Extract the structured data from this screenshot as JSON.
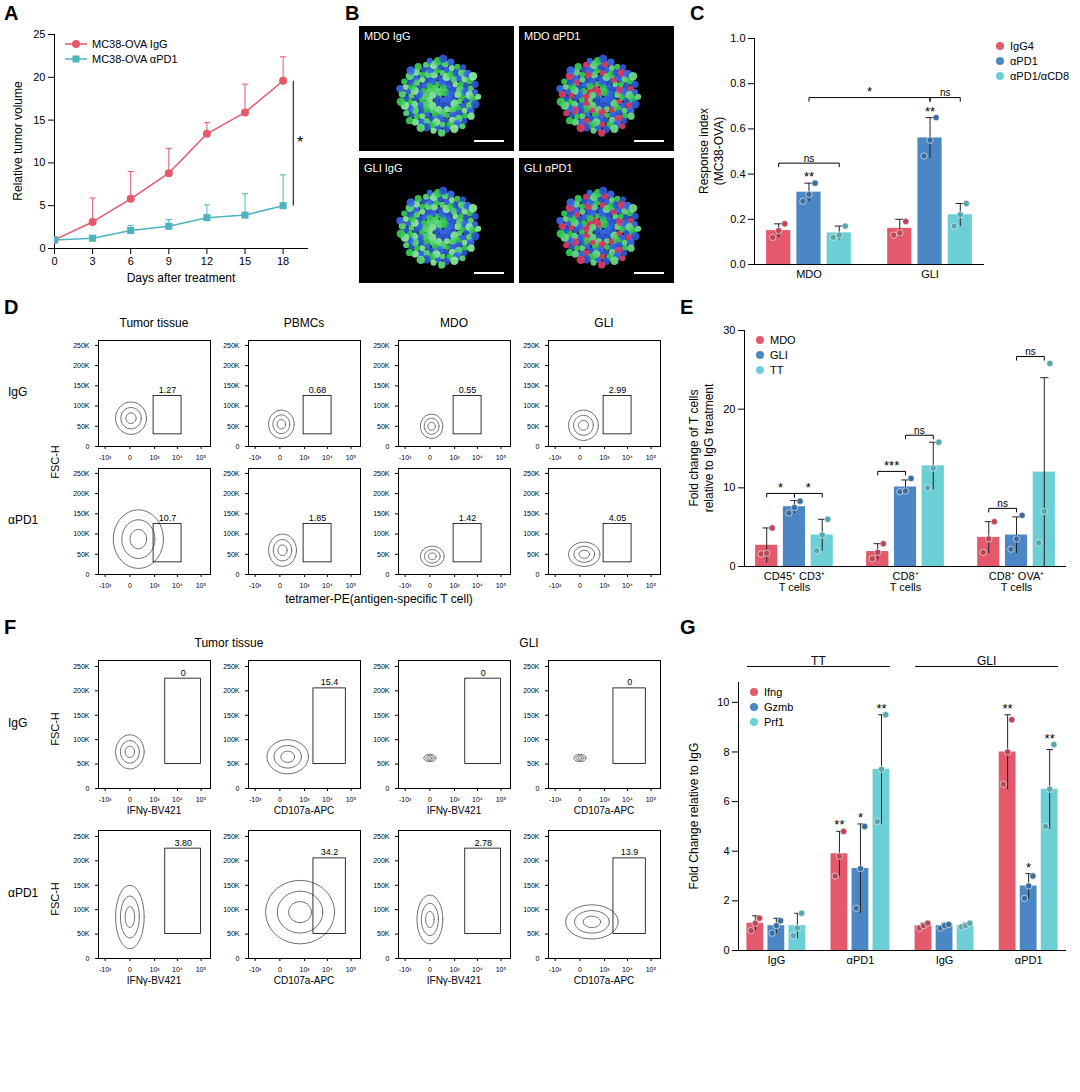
{
  "chart_data": [
    {
      "panel": "A",
      "type": "line",
      "x": [
        0,
        3,
        6,
        9,
        12,
        15,
        18
      ],
      "xlabel": "Days after treatment",
      "ylabel": "Relative tumor volume",
      "xlim": [
        0,
        20
      ],
      "xticks": [
        0,
        3,
        6,
        9,
        12,
        15,
        18
      ],
      "ylim": [
        0,
        25
      ],
      "yticks": [
        0,
        5,
        10,
        15,
        20,
        25
      ],
      "legend": "top-left",
      "series": [
        {
          "name": "MC38-OVA IgG",
          "color": "#e4596c",
          "marker": "circle",
          "values": [
            1,
            3.1,
            5.8,
            8.8,
            13.4,
            15.9,
            19.6
          ],
          "errors": [
            0,
            2.8,
            3.2,
            2.9,
            1.3,
            3.3,
            2.8
          ]
        },
        {
          "name": "MC38-OVA αPD1",
          "color": "#4fb3bf",
          "marker": "square",
          "values": [
            1,
            1.2,
            2.1,
            2.6,
            3.6,
            3.9,
            5.0
          ],
          "errors": [
            0,
            0.3,
            0.6,
            0.8,
            1.5,
            2.5,
            3.6
          ]
        }
      ],
      "annotations": [
        {
          "text": "*",
          "between": [
            "MC38-OVA IgG",
            "MC38-OVA αPD1"
          ],
          "x": 18
        }
      ]
    },
    {
      "panel": "B",
      "type": "image",
      "labels": [
        "MDO IgG",
        "MDO αPD1",
        "GLI IgG",
        "GLI αPD1"
      ]
    },
    {
      "panel": "C",
      "type": "bar",
      "categories": [
        "MDO",
        "GLI"
      ],
      "ylabel": "Response index\n(MC38-OVA)",
      "ylim": [
        0,
        1
      ],
      "yticks": [
        {
          "value": 0,
          "label": "0.0"
        },
        0.2,
        0.4,
        0.6,
        0.8,
        {
          "value": 1,
          "label": "1.0"
        }
      ],
      "legend": "right",
      "series": [
        {
          "name": "IgG4",
          "color": "#e4596c",
          "values": [
            0.15,
            0.16
          ],
          "errors": [
            0.03,
            0.04
          ],
          "points": [
            [
              0.12,
              0.15,
              0.18
            ],
            [
              0.13,
              0.14,
              0.19
            ]
          ]
        },
        {
          "name": "αPD1",
          "color": "#4a87c4",
          "values": [
            0.32,
            0.56
          ],
          "errors": [
            0.04,
            0.09
          ],
          "points": [
            [
              0.28,
              0.31,
              0.36
            ],
            [
              0.48,
              0.55,
              0.65
            ]
          ]
        },
        {
          "name": "αPD1/αCD8",
          "color": "#6ccfd6",
          "values": [
            0.14,
            0.22
          ],
          "errors": [
            0.03,
            0.05
          ],
          "points": [
            [
              0.12,
              0.13,
              0.17
            ],
            [
              0.17,
              0.22,
              0.27
            ]
          ]
        }
      ],
      "annotations": [
        {
          "text": "**",
          "at": [
            0,
            1
          ]
        },
        {
          "text": "**",
          "at": [
            1,
            1
          ]
        },
        {
          "text": "ns",
          "from": [
            0,
            0
          ],
          "to": [
            0,
            2
          ]
        },
        {
          "text": "ns",
          "from": [
            1,
            1
          ],
          "to": [
            1,
            2
          ]
        },
        {
          "text": "*",
          "from": [
            0,
            1
          ],
          "to": [
            1,
            1
          ]
        }
      ]
    },
    {
      "panel": "D",
      "type": "flow_cytometry",
      "columns": [
        "Tumor tissue",
        "PBMCs",
        "MDO",
        "GLI"
      ],
      "rows": [
        "IgG",
        "αPD1"
      ],
      "xlabel": "tetramer-PE(antigen-specific T cell)",
      "ylabel": "FSC-H",
      "log": "x",
      "xlim": [
        -2000,
        250000
      ],
      "xticks": [
        {
          "value": -1000,
          "label": "-10³"
        },
        0,
        {
          "value": 1000,
          "label": "10³"
        },
        {
          "value": 10000,
          "label": "10⁴"
        },
        {
          "value": 100000,
          "label": "10⁵"
        }
      ],
      "ylim": [
        0,
        262144
      ],
      "yticks": [
        0,
        {
          "value": 50000,
          "label": "50K"
        },
        {
          "value": 100000,
          "label": "100K"
        },
        {
          "value": 150000,
          "label": "150K"
        },
        {
          "value": 200000,
          "label": "200K"
        },
        {
          "value": 250000,
          "label": "250K"
        }
      ],
      "gates": [
        {
          "x": [
            900,
            15000
          ],
          "y": [
            30000,
            125000
          ]
        },
        {
          "x": [
            900,
            15000
          ],
          "y": [
            30000,
            125000
          ]
        },
        {
          "x": [
            900,
            15000
          ],
          "y": [
            30000,
            125000
          ]
        },
        {
          "x": [
            900,
            15000
          ],
          "y": [
            30000,
            125000
          ]
        }
      ],
      "values": [
        [
          1.27,
          0.68,
          0.55,
          2.99
        ],
        [
          10.7,
          1.85,
          1.42,
          4.05
        ]
      ],
      "populations": [
        [
          {
            "x": [
              -300,
              400
            ],
            "y": [
              30000,
              110000
            ]
          },
          {
            "x": [
              -200,
              300
            ],
            "y": [
              20000,
              90000
            ]
          },
          {
            "x": [
              -150,
              250
            ],
            "y": [
              20000,
              80000
            ]
          },
          {
            "x": [
              -200,
              500
            ],
            "y": [
              15000,
              90000
            ]
          }
        ],
        [
          {
            "x": [
              -400,
              2500
            ],
            "y": [
              15000,
              160000
            ]
          },
          {
            "x": [
              -200,
              400
            ],
            "y": [
              20000,
              100000
            ]
          },
          {
            "x": [
              -150,
              300
            ],
            "y": [
              20000,
              70000
            ]
          },
          {
            "x": [
              -200,
              600
            ],
            "y": [
              20000,
              80000
            ]
          }
        ]
      ]
    },
    {
      "panel": "E",
      "type": "bar",
      "categories": [
        "CD45⁺ CD3⁺\nT cells",
        "CD8⁺\nT cells",
        "CD8⁺ OVA⁺\nT cells"
      ],
      "ylabel": "Fold change of T cells\nrelative to IgG treatment",
      "ylim": [
        0,
        30
      ],
      "yticks": [
        0,
        10,
        20,
        30
      ],
      "legend": "top-left",
      "series": [
        {
          "name": "MDO",
          "color": "#e4596c",
          "values": [
            2.7,
            1.9,
            3.7
          ],
          "errors": [
            2.2,
            1.0,
            2.0
          ],
          "points": [
            [
              1.6,
              1.7,
              4.9
            ],
            [
              1.0,
              1.8,
              2.9
            ],
            [
              1.8,
              3.5,
              5.7
            ]
          ]
        },
        {
          "name": "GLI",
          "color": "#4a87c4",
          "values": [
            7.6,
            10.1,
            4.0
          ],
          "errors": [
            0.8,
            0.9,
            2.3
          ],
          "points": [
            [
              6.8,
              7.5,
              8.3
            ],
            [
              9.5,
              9.6,
              11.2
            ],
            [
              2.2,
              3.5,
              6.5
            ]
          ]
        },
        {
          "name": "TT",
          "color": "#6ccfd6",
          "values": [
            4.0,
            12.8,
            12.0
          ],
          "errors": [
            2.0,
            3.0,
            12.0
          ],
          "points": [
            [
              2.0,
              4.0,
              6.0
            ],
            [
              10.0,
              12.5,
              15.8
            ],
            [
              3.0,
              7.0,
              25.8
            ]
          ]
        }
      ],
      "annotations": [
        {
          "text": "*",
          "from": [
            0,
            0
          ],
          "to": [
            0,
            1
          ]
        },
        {
          "text": "*",
          "from": [
            0,
            1
          ],
          "to": [
            0,
            2
          ]
        },
        {
          "text": "***",
          "from": [
            1,
            0
          ],
          "to": [
            1,
            1
          ]
        },
        {
          "text": "ns",
          "from": [
            1,
            1
          ],
          "to": [
            1,
            2
          ]
        },
        {
          "text": "ns",
          "from": [
            2,
            0
          ],
          "to": [
            2,
            1
          ]
        },
        {
          "text": "ns",
          "from": [
            2,
            1
          ],
          "to": [
            2,
            2
          ]
        }
      ]
    },
    {
      "panel": "F",
      "type": "flow_cytometry",
      "column_groups": [
        {
          "label": "Tumor tissue",
          "span": 2
        },
        {
          "label": "GLI",
          "span": 2
        }
      ],
      "xlabels": [
        "IFNγ-BV421",
        "CD107a-APC",
        "IFNγ-BV421",
        "CD107a-APC"
      ],
      "rows": [
        "IgG",
        "αPD1"
      ],
      "ylabel": "FSC-H",
      "log": "x",
      "xlim": [
        -2000,
        250000
      ],
      "xticks": [
        {
          "value": -1000,
          "label": "-10³"
        },
        0,
        {
          "value": 1000,
          "label": "10³"
        },
        {
          "value": 10000,
          "label": "10⁴"
        },
        {
          "value": 100000,
          "label": "10⁵"
        }
      ],
      "ylim": [
        0,
        262144
      ],
      "yticks": [
        0,
        {
          "value": 50000,
          "label": "50K"
        },
        {
          "value": 100000,
          "label": "100K"
        },
        {
          "value": 150000,
          "label": "150K"
        },
        {
          "value": 200000,
          "label": "200K"
        },
        {
          "value": 250000,
          "label": "250K"
        }
      ],
      "gates": [
        {
          "x": [
            3000,
            100000
          ],
          "y": [
            50000,
            225000
          ]
        },
        {
          "x": [
            2500,
            60000
          ],
          "y": [
            50000,
            205000
          ]
        },
        {
          "x": [
            3000,
            100000
          ],
          "y": [
            50000,
            225000
          ]
        },
        {
          "x": [
            2500,
            60000
          ],
          "y": [
            50000,
            205000
          ]
        }
      ],
      "values": [
        [
          0,
          15.4,
          0,
          0
        ],
        [
          3.8,
          34.2,
          2.78,
          13.9
        ]
      ],
      "value_labels": [
        [
          "0",
          "15.4",
          "0",
          "0"
        ],
        [
          "3.80",
          "34.2",
          "2.78",
          "13.9"
        ]
      ],
      "populations": [
        [
          {
            "x": [
              -300,
              300
            ],
            "y": [
              40000,
              110000
            ]
          },
          {
            "x": [
              -250,
              1500
            ],
            "y": [
              30000,
              100000
            ]
          },
          {
            "x": [
              -80,
              80
            ],
            "y": [
              55000,
              70000
            ]
          },
          {
            "x": [
              -80,
              80
            ],
            "y": [
              55000,
              70000
            ]
          }
        ],
        [
          {
            "x": [
              -300,
              300
            ],
            "y": [
              20000,
              150000
            ]
          },
          {
            "x": [
              -300,
              20000
            ],
            "y": [
              30000,
              160000
            ]
          },
          {
            "x": [
              -250,
              250
            ],
            "y": [
              30000,
              130000
            ]
          },
          {
            "x": [
              -300,
              4000
            ],
            "y": [
              40000,
              110000
            ]
          }
        ]
      ]
    },
    {
      "panel": "G",
      "type": "bar",
      "categories": [
        "IgG",
        "αPD1",
        "IgG",
        "αPD1"
      ],
      "groups": [
        {
          "label": "TT",
          "from": 0,
          "to": 1
        },
        {
          "label": "GLI",
          "from": 2,
          "to": 3
        }
      ],
      "ylabel": "Fold Change relative to IgG",
      "ylim": [
        0,
        10.8
      ],
      "yticks": [
        0,
        2,
        4,
        6,
        8,
        10
      ],
      "legend": "top-left",
      "series": [
        {
          "name": "Ifng",
          "color": "#e4596c",
          "values": [
            1.1,
            3.9,
            1.0,
            8.0
          ],
          "errors": [
            0.3,
            0.9,
            0.1,
            1.5
          ],
          "points": [
            [
              0.8,
              1.1,
              1.3
            ],
            [
              3.0,
              3.8,
              4.8
            ],
            [
              0.9,
              1.0,
              1.1
            ],
            [
              6.7,
              8.0,
              9.3
            ]
          ]
        },
        {
          "name": "Gzmb",
          "color": "#4a87c4",
          "values": [
            1.0,
            3.3,
            1.0,
            2.6
          ],
          "errors": [
            0.3,
            1.8,
            0.1,
            0.5
          ],
          "points": [
            [
              0.7,
              1.0,
              1.2
            ],
            [
              1.7,
              3.3,
              5.0
            ],
            [
              0.9,
              1.0,
              1.05
            ],
            [
              2.1,
              2.6,
              3.0
            ]
          ]
        },
        {
          "name": "Prf1",
          "color": "#6ccfd6",
          "values": [
            1.0,
            7.3,
            1.0,
            6.5
          ],
          "errors": [
            0.5,
            2.2,
            0.1,
            1.6
          ],
          "points": [
            [
              0.6,
              0.9,
              1.5
            ],
            [
              5.2,
              7.3,
              9.5
            ],
            [
              0.95,
              1.0,
              1.1
            ],
            [
              5.0,
              6.5,
              8.3
            ]
          ]
        }
      ],
      "annotations": [
        {
          "text": "**",
          "at": [
            1,
            0
          ]
        },
        {
          "text": "*",
          "at": [
            1,
            1
          ]
        },
        {
          "text": "**",
          "at": [
            1,
            2
          ]
        },
        {
          "text": "**",
          "at": [
            3,
            0
          ]
        },
        {
          "text": "*",
          "at": [
            3,
            1
          ]
        },
        {
          "text": "**",
          "at": [
            3,
            2
          ]
        }
      ]
    }
  ]
}
